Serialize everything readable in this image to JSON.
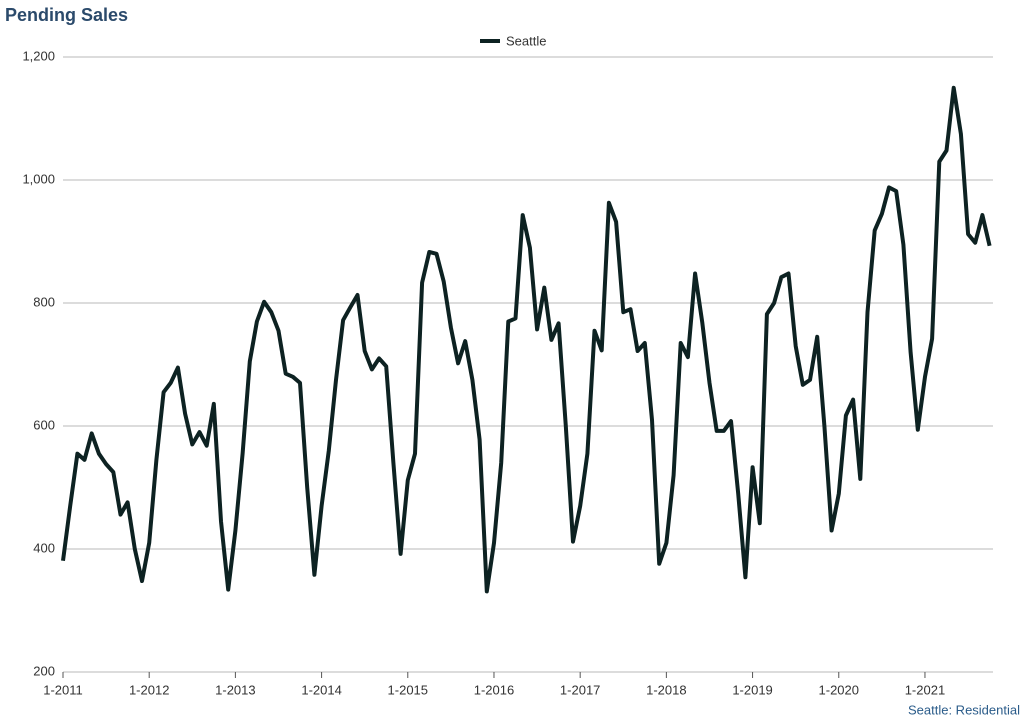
{
  "chart_data": {
    "type": "line",
    "title": "Pending Sales",
    "source": "Seattle: Residential",
    "categories": [
      "1-2011",
      null,
      null,
      null,
      null,
      null,
      null,
      null,
      null,
      null,
      null,
      null,
      "1-2012",
      null,
      null,
      null,
      null,
      null,
      null,
      null,
      null,
      null,
      null,
      null,
      "1-2013",
      null,
      null,
      null,
      null,
      null,
      null,
      null,
      null,
      null,
      null,
      null,
      "1-2014",
      null,
      null,
      null,
      null,
      null,
      null,
      null,
      null,
      null,
      null,
      null,
      "1-2015",
      null,
      null,
      null,
      null,
      null,
      null,
      null,
      null,
      null,
      null,
      null,
      "1-2016",
      null,
      null,
      null,
      null,
      null,
      null,
      null,
      null,
      null,
      null,
      null,
      "1-2017",
      null,
      null,
      null,
      null,
      null,
      null,
      null,
      null,
      null,
      null,
      null,
      "1-2018",
      null,
      null,
      null,
      null,
      null,
      null,
      null,
      null,
      null,
      null,
      null,
      "1-2019",
      null,
      null,
      null,
      null,
      null,
      null,
      null,
      null,
      null,
      null,
      null,
      "1-2020",
      null,
      null,
      null,
      null,
      null,
      null,
      null,
      null,
      null,
      null,
      null,
      "1-2021",
      null,
      null,
      null,
      null,
      null,
      null,
      null,
      null,
      null
    ],
    "series": [
      {
        "name": "Seattle",
        "color": "#0d2222",
        "values": [
          381,
          470,
          555,
          545,
          588,
          555,
          538,
          525,
          456,
          476,
          400,
          348,
          410,
          545,
          655,
          670,
          695,
          620,
          570,
          590,
          568,
          636,
          445,
          334,
          430,
          555,
          705,
          770,
          802,
          785,
          755,
          685,
          680,
          670,
          500,
          358,
          470,
          560,
          675,
          772,
          793,
          813,
          722,
          692,
          710,
          697,
          540,
          392,
          512,
          555,
          833,
          883,
          880,
          835,
          760,
          702,
          738,
          675,
          578,
          331,
          410,
          540,
          770,
          775,
          943,
          890,
          757,
          825,
          740,
          767,
          600,
          412,
          470,
          555,
          755,
          723,
          963,
          932,
          785,
          790,
          722,
          735,
          610,
          376,
          410,
          520,
          735,
          712,
          848,
          768,
          670,
          592,
          592,
          608,
          490,
          354,
          533,
          442,
          782,
          800,
          842,
          848,
          730,
          667,
          675,
          745,
          600,
          430,
          490,
          617,
          643,
          514,
          785,
          918,
          945,
          988,
          982,
          895,
          720,
          594,
          680,
          742,
          1030,
          1048,
          1150,
          1075,
          912,
          898,
          943,
          893
        ]
      }
    ],
    "ylim": [
      200,
      1200
    ],
    "yticks": [
      200,
      400,
      600,
      800,
      {
        "value": 1000,
        "label": "1,000"
      },
      {
        "value": 1200,
        "label": "1,200"
      }
    ],
    "grid": true,
    "legend": "top"
  }
}
